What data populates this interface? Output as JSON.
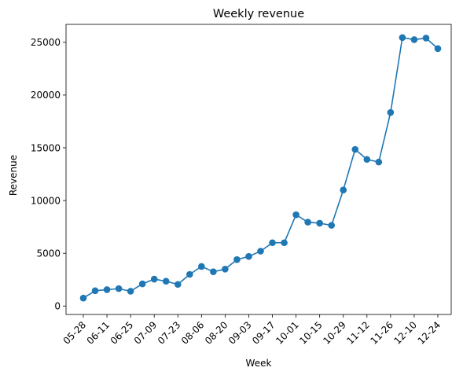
{
  "chart_data": {
    "type": "line",
    "title": "Weekly revenue",
    "xlabel": "Week",
    "ylabel": "Revenue",
    "x": [
      "05-28",
      "06-04",
      "06-11",
      "06-18",
      "06-25",
      "07-02",
      "07-09",
      "07-16",
      "07-23",
      "07-30",
      "08-06",
      "08-13",
      "08-20",
      "08-27",
      "09-03",
      "09-10",
      "09-17",
      "09-24",
      "10-01",
      "10-08",
      "10-15",
      "10-22",
      "10-29",
      "11-05",
      "11-12",
      "11-19",
      "11-26",
      "12-03",
      "12-10",
      "12-17",
      "12-24"
    ],
    "x_tick_labels": [
      "05-28",
      "06-11",
      "06-25",
      "07-09",
      "07-23",
      "08-06",
      "08-20",
      "09-03",
      "09-17",
      "10-01",
      "10-15",
      "10-29",
      "11-12",
      "11-26",
      "12-10",
      "12-24"
    ],
    "series": [
      {
        "values": [
          750,
          1450,
          1550,
          1650,
          1400,
          2100,
          2550,
          2350,
          2050,
          3000,
          3750,
          3250,
          3500,
          4400,
          4700,
          5200,
          6000,
          6000,
          8650,
          7950,
          7850,
          7650,
          11000,
          14850,
          13900,
          13650,
          18350,
          25450,
          25250,
          25400,
          24400
        ],
        "color": "#1f77b4"
      }
    ],
    "y_ticks": [
      0,
      5000,
      10000,
      15000,
      20000,
      25000
    ],
    "ylim": [
      -800,
      26700
    ],
    "grid": false,
    "legend": "none",
    "marker": "circle"
  }
}
